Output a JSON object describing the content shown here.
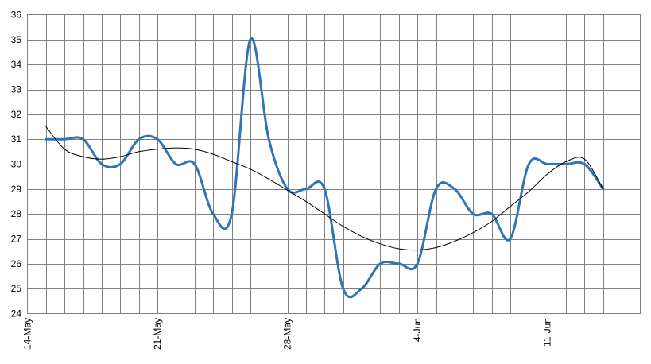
{
  "chart_data": {
    "type": "line",
    "title": "",
    "xlabel": "",
    "ylabel": "",
    "ylim": [
      24,
      36
    ],
    "yticks": [
      "24",
      "25",
      "26",
      "27",
      "28",
      "29",
      "30",
      "31",
      "32",
      "33",
      "34",
      "35",
      "36"
    ],
    "xlim": [
      "14-May",
      "16-Jun"
    ],
    "xtick_labels": [
      "14-May",
      "21-May",
      "28-May",
      "4-Jun",
      "11-Jun"
    ],
    "grid": "on",
    "legend": "none",
    "series": [
      {
        "color": "#2E75B6",
        "x": [
          "15-May",
          "16-May",
          "17-May",
          "18-May",
          "19-May",
          "20-May",
          "21-May",
          "22-May",
          "23-May",
          "24-May",
          "25-May",
          "26-May",
          "27-May",
          "28-May",
          "29-May",
          "30-May",
          "31-May",
          "1-Jun",
          "2-Jun",
          "3-Jun",
          "4-Jun",
          "5-Jun",
          "6-Jun",
          "7-Jun",
          "8-Jun",
          "9-Jun",
          "10-Jun",
          "11-Jun",
          "12-Jun",
          "13-Jun",
          "14-Jun"
        ],
        "values": [
          31,
          31,
          31,
          30,
          30,
          31,
          31,
          30,
          30,
          28,
          28,
          35,
          31,
          29,
          29,
          29,
          25,
          25,
          26,
          26,
          26,
          29,
          29,
          28,
          28,
          27,
          30,
          30,
          30,
          30,
          29
        ]
      },
      {
        "color": "#000000",
        "trendline": true,
        "x": [
          "15-May",
          "16-May",
          "17-May",
          "18-May",
          "19-May",
          "20-May",
          "21-May",
          "22-May",
          "23-May",
          "24-May",
          "25-May",
          "26-May",
          "27-May",
          "28-May",
          "29-May",
          "30-May",
          "31-May",
          "1-Jun",
          "2-Jun",
          "3-Jun",
          "4-Jun",
          "5-Jun",
          "6-Jun",
          "7-Jun",
          "8-Jun",
          "9-Jun",
          "10-Jun",
          "11-Jun",
          "12-Jun",
          "13-Jun",
          "14-Jun"
        ],
        "values": [
          31.5,
          30.6,
          30.3,
          30.2,
          30.3,
          30.5,
          30.6,
          30.65,
          30.6,
          30.4,
          30.1,
          29.8,
          29.4,
          28.95,
          28.5,
          28.0,
          27.5,
          27.1,
          26.8,
          26.6,
          26.55,
          26.65,
          26.9,
          27.25,
          27.7,
          28.3,
          28.9,
          29.6,
          30.1,
          30.2,
          29.0
        ]
      }
    ]
  }
}
